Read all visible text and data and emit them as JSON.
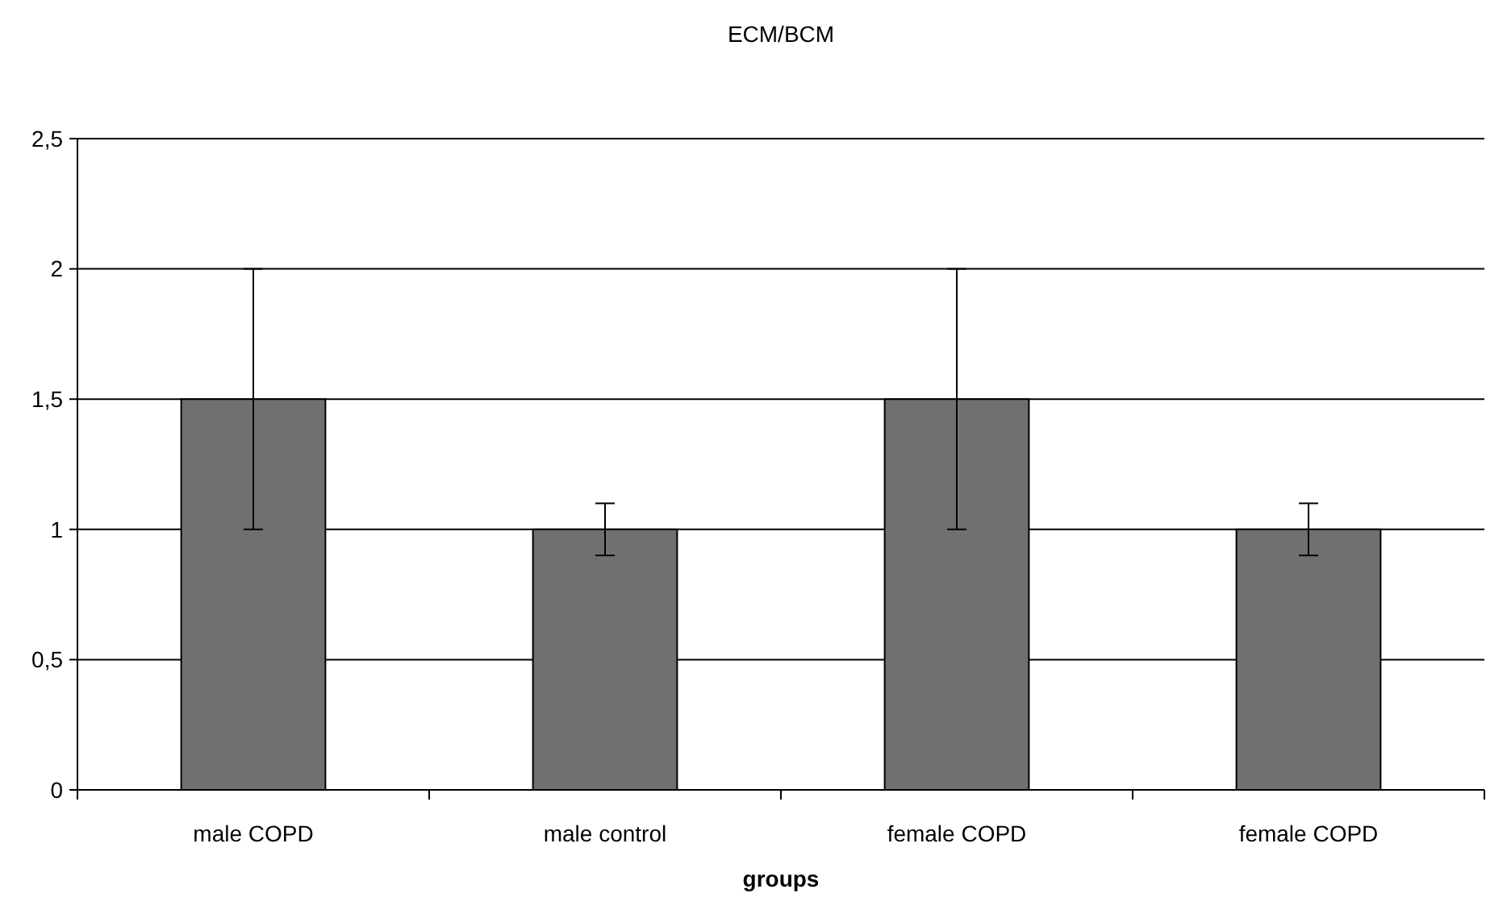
{
  "chart_data": {
    "type": "bar",
    "title": "ECM/BCM",
    "xlabel": "groups",
    "categories": [
      "male COPD",
      "male control",
      "female COPD",
      "female COPD"
    ],
    "values": [
      1.5,
      1,
      1.5,
      1
    ],
    "errors": [
      0.5,
      0.1,
      0.5,
      0.1
    ],
    "color": "#707070",
    "ylim": [
      0,
      2.5
    ],
    "yticks": [
      0,
      {
        "value": 0.5,
        "label": "0,5"
      },
      1,
      {
        "value": 1.5,
        "label": "1,5"
      },
      2,
      {
        "value": 2.5,
        "label": "2,5"
      }
    ],
    "grid": "y"
  }
}
